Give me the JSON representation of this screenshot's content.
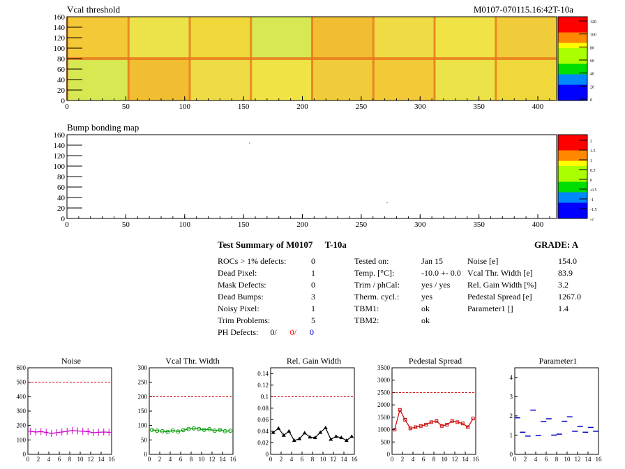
{
  "page": {
    "title_right": "M0107-070115.16:42T-10a"
  },
  "maps": {
    "vcal": {
      "title": "Vcal threshold",
      "xticks": [
        0,
        50,
        100,
        150,
        200,
        250,
        300,
        350,
        400
      ],
      "yticks": [
        0,
        20,
        40,
        60,
        80,
        100,
        120,
        140,
        160
      ],
      "zticks": [
        "0",
        "20",
        "40",
        "60",
        "80",
        "100",
        "120"
      ]
    },
    "bump": {
      "title": "Bump bonding map",
      "xticks": [
        0,
        50,
        100,
        150,
        200,
        250,
        300,
        350,
        400
      ],
      "yticks": [
        0,
        20,
        40,
        60,
        80,
        100,
        120,
        140,
        160
      ],
      "zticks": [
        "-2",
        "-1.5",
        "-1",
        "-0.5",
        "0",
        "0.5",
        "1",
        "1.5",
        "2"
      ]
    }
  },
  "summary": {
    "title": "Test Summary of M0107",
    "title_temp": "T-10a",
    "grade_label": "GRADE:  A",
    "defects": [
      {
        "label": "ROCs > 1% defects:",
        "value": "0"
      },
      {
        "label": "Dead Pixel:",
        "value": "1"
      },
      {
        "label": "Mask Defects:",
        "value": "0"
      },
      {
        "label": "Dead Bumps:",
        "value": "3"
      },
      {
        "label": "Noisy Pixel:",
        "value": "1"
      },
      {
        "label": "Trim Problems:",
        "value": "5"
      }
    ],
    "ph_defects_label": "PH Defects:",
    "ph_values": [
      "0/",
      "0/",
      "0"
    ],
    "ph_colors": [
      "#000000",
      "#ff0000",
      "#0000cc"
    ],
    "tests": [
      {
        "label": "Tested on:",
        "value": "Jan 15"
      },
      {
        "label": "Temp. [°C]:",
        "value": "-10.0 +- 0.0"
      },
      {
        "label": "Trim / phCal:",
        "value": "yes / yes"
      },
      {
        "label": "Therm. cycl.:",
        "value": "yes"
      },
      {
        "label": "TBM1:",
        "value": "ok"
      },
      {
        "label": "TBM2:",
        "value": "ok"
      }
    ],
    "params": [
      {
        "label": "Noise [e]",
        "value": "154.0"
      },
      {
        "label": "Vcal Thr. Width [e]",
        "value": "83.9"
      },
      {
        "label": "Rel. Gain Width [%]",
        "value": "3.2"
      },
      {
        "label": "Pedestal Spread [e]",
        "value": "1267.0"
      },
      {
        "label": "Parameter1 []",
        "value": "1.4"
      }
    ]
  },
  "chart_data": [
    {
      "type": "line",
      "title": "Noise",
      "color": "#cc00cc",
      "marker": "cross",
      "x": [
        0,
        1,
        2,
        3,
        4,
        5,
        6,
        7,
        8,
        9,
        10,
        11,
        12,
        13,
        14,
        15
      ],
      "values": [
        160,
        155,
        158,
        152,
        145,
        150,
        155,
        160,
        165,
        162,
        160,
        158,
        150,
        153,
        155,
        153
      ],
      "ylim": [
        0,
        600
      ],
      "yticks": [
        0,
        100,
        200,
        300,
        400,
        500,
        600
      ],
      "threshold": 500,
      "xticks": [
        0,
        2,
        4,
        6,
        8,
        10,
        12,
        14,
        16
      ],
      "xlim": [
        0,
        16
      ]
    },
    {
      "type": "line",
      "title": "Vcal Thr. Width",
      "color": "#009900",
      "marker": "circle",
      "x": [
        0,
        1,
        2,
        3,
        4,
        5,
        6,
        7,
        8,
        9,
        10,
        11,
        12,
        13,
        14,
        15
      ],
      "values": [
        85,
        82,
        80,
        78,
        83,
        79,
        84,
        88,
        90,
        88,
        85,
        87,
        82,
        85,
        80,
        82
      ],
      "ylim": [
        0,
        300
      ],
      "yticks": [
        0,
        50,
        100,
        150,
        200,
        250,
        300
      ],
      "threshold": 200,
      "xticks": [
        0,
        2,
        4,
        6,
        8,
        10,
        12,
        14,
        16
      ],
      "xlim": [
        0,
        16
      ]
    },
    {
      "type": "line",
      "title": "Rel. Gain Width",
      "color": "#000000",
      "marker": "triangle",
      "x": [
        0,
        1,
        2,
        3,
        4,
        5,
        6,
        7,
        8,
        9,
        10,
        11,
        12,
        13,
        14,
        15
      ],
      "values": [
        0.038,
        0.045,
        0.033,
        0.04,
        0.024,
        0.027,
        0.037,
        0.03,
        0.029,
        0.038,
        0.046,
        0.026,
        0.031,
        0.029,
        0.024,
        0.031
      ],
      "ylim": [
        0,
        0.15
      ],
      "yticks": [
        "0",
        "0.02",
        "0.04",
        "0.06",
        "0.08",
        "0.1",
        "0.12",
        "0.14"
      ],
      "ytick_vals": [
        0,
        0.02,
        0.04,
        0.06,
        0.08,
        0.1,
        0.12,
        0.14
      ],
      "threshold": 0.1,
      "xticks": [
        0,
        2,
        4,
        6,
        8,
        10,
        12,
        14,
        16
      ],
      "xlim": [
        0,
        16
      ]
    },
    {
      "type": "line",
      "title": "Pedestal Spread",
      "color": "#cc0000",
      "marker": "square",
      "x": [
        0,
        1,
        2,
        3,
        4,
        5,
        6,
        7,
        8,
        9,
        10,
        11,
        12,
        13,
        14,
        15
      ],
      "values": [
        1000,
        1800,
        1400,
        1050,
        1100,
        1150,
        1200,
        1300,
        1350,
        1150,
        1200,
        1350,
        1300,
        1250,
        1100,
        1450
      ],
      "ylim": [
        0,
        3500
      ],
      "yticks": [
        0,
        500,
        1000,
        1500,
        2000,
        2500,
        3000,
        3500
      ],
      "threshold": 2500,
      "xticks": [
        0,
        2,
        4,
        6,
        8,
        10,
        12,
        14,
        16
      ],
      "xlim": [
        0,
        16
      ]
    },
    {
      "type": "scatter",
      "title": "Parameter1",
      "color": "#0000cc",
      "marker": "hbar",
      "x": [
        0,
        1,
        2,
        3,
        4,
        5,
        6,
        7,
        8,
        9,
        10,
        11,
        12,
        13,
        14,
        15
      ],
      "values": [
        1.9,
        1.15,
        0.95,
        2.3,
        0.98,
        1.7,
        1.85,
        1.0,
        1.05,
        1.72,
        1.95,
        1.2,
        1.45,
        1.15,
        1.4,
        1.2
      ],
      "ylim": [
        0,
        4.5
      ],
      "yticks": [
        0,
        1,
        2,
        3,
        4
      ],
      "xticks": [
        0,
        2,
        4,
        6,
        8,
        10,
        12,
        14,
        16
      ],
      "xlim": [
        0,
        16
      ]
    }
  ]
}
